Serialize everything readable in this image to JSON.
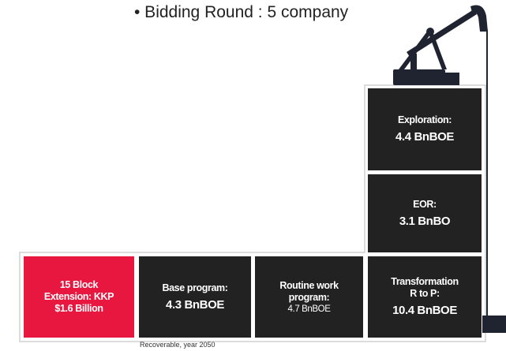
{
  "bullet": "• Bidding Round : 5 company",
  "boxes": [
    {
      "label": [
        "15 Block",
        "Extension: KKP"
      ],
      "value": "$1.6 Billion"
    },
    {
      "label": [
        "Base program:"
      ],
      "value": "4.3 BnBOE"
    },
    {
      "label": [
        "Routine work",
        "program:"
      ],
      "value": "4.7 BnBOE"
    },
    {
      "label": [
        "Transformation",
        "R to P:"
      ],
      "value": "10.4 BnBOE"
    },
    {
      "label": [
        "EOR:"
      ],
      "value": "3.1 BnBO"
    },
    {
      "label": [
        "Exploration:"
      ],
      "value": "4.4 BnBOE"
    }
  ],
  "footnote": "Recoverable,  year 2050"
}
